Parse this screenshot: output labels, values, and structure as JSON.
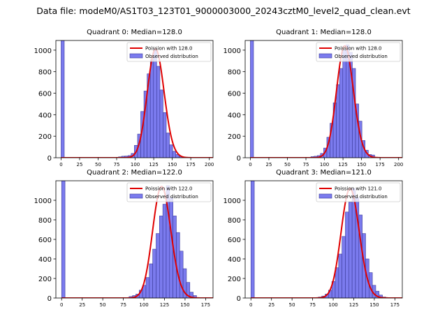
{
  "figure": {
    "suptitle": "Data file: modeM0/AS1T03_123T01_9000003000_20243cztM0_level2_quad_clean.evt"
  },
  "chart_data": [
    {
      "type": "bar",
      "title": "Quadrant 0: Median=128.0",
      "legend": {
        "line": "Poission with 128.0",
        "bars": "Observed distribution",
        "placement": "top-right"
      },
      "bin_width": 4.3,
      "xlim": [
        -7,
        205
      ],
      "ylim": [
        0,
        1090
      ],
      "xticks": [
        0,
        25,
        50,
        75,
        100,
        125,
        150,
        175,
        200
      ],
      "yticks": [
        0,
        200,
        400,
        600,
        800,
        1000
      ],
      "bins": [
        0,
        77.4,
        81.7,
        86.0,
        90.3,
        94.6,
        98.9,
        103.2,
        107.5,
        111.8,
        116.1,
        120.4,
        124.7,
        129.0,
        133.3,
        137.6,
        141.9,
        146.2,
        150.5,
        154.8,
        159.1,
        163.4
      ],
      "values": [
        1090,
        8,
        14,
        16,
        20,
        40,
        115,
        220,
        430,
        620,
        780,
        910,
        1010,
        850,
        630,
        420,
        230,
        120,
        60,
        30,
        12,
        5
      ],
      "poisson_mean": 128.0,
      "poisson_scale": 1010
    },
    {
      "type": "bar",
      "title": "Quadrant 1: Median=128.0",
      "legend": {
        "line": "Poission with 128.0",
        "bars": "Observed distribution",
        "placement": "top-right"
      },
      "bin_width": 4.3,
      "xlim": [
        -7,
        205
      ],
      "ylim": [
        0,
        1090
      ],
      "xticks": [
        0,
        25,
        50,
        75,
        100,
        125,
        150,
        175,
        200
      ],
      "yticks": [
        0,
        200,
        400,
        600,
        800,
        1000
      ],
      "bins": [
        0,
        81.7,
        86.0,
        90.3,
        94.6,
        98.9,
        103.2,
        107.5,
        111.8,
        116.1,
        120.4,
        124.7,
        129.0,
        133.3,
        137.6,
        141.9,
        146.2,
        150.5,
        154.8,
        159.1,
        163.4,
        167.7
      ],
      "values": [
        1090,
        10,
        14,
        20,
        40,
        90,
        190,
        320,
        510,
        680,
        830,
        1000,
        1050,
        980,
        830,
        500,
        340,
        160,
        70,
        30,
        25,
        5
      ],
      "poisson_mean": 128.0,
      "poisson_scale": 1040
    },
    {
      "type": "bar",
      "title": "Quadrant 2: Median=122.0",
      "legend": {
        "line": "Poission with 122.0",
        "bars": "Observed distribution",
        "placement": "top-right"
      },
      "bin_width": 4.1,
      "xlim": [
        -7,
        184
      ],
      "ylim": [
        0,
        1200
      ],
      "xticks": [
        0,
        25,
        50,
        75,
        100,
        125,
        150,
        175
      ],
      "yticks": [
        0,
        200,
        400,
        600,
        800,
        1000
      ],
      "bins": [
        0,
        82.0,
        86.1,
        90.2,
        94.3,
        98.4,
        102.5,
        106.6,
        110.7,
        114.8,
        118.9,
        123.0,
        127.1,
        131.2,
        135.3,
        139.4,
        143.5,
        147.6,
        151.7,
        155.8,
        159.9
      ],
      "values": [
        1200,
        15,
        25,
        40,
        80,
        130,
        210,
        350,
        500,
        660,
        840,
        960,
        1150,
        1030,
        840,
        670,
        480,
        300,
        160,
        60,
        25
      ],
      "poisson_mean": 122.0,
      "poisson_scale": 1140
    },
    {
      "type": "bar",
      "title": "Quadrant 3: Median=121.0",
      "legend": {
        "line": "Poission with 121.0",
        "bars": "Observed distribution",
        "placement": "top-right"
      },
      "bin_width": 4.1,
      "xlim": [
        -7,
        184
      ],
      "ylim": [
        0,
        1200
      ],
      "xticks": [
        0,
        25,
        50,
        75,
        100,
        125,
        150,
        175
      ],
      "yticks": [
        0,
        200,
        400,
        600,
        800,
        1000
      ],
      "bins": [
        0,
        82.0,
        86.1,
        90.2,
        94.3,
        98.4,
        102.5,
        106.6,
        110.7,
        114.8,
        118.9,
        123.0,
        127.1,
        131.2,
        135.3,
        139.4,
        143.5,
        147.6,
        151.7,
        155.8,
        159.9
      ],
      "values": [
        1200,
        10,
        20,
        40,
        80,
        170,
        310,
        450,
        630,
        880,
        980,
        1120,
        1030,
        850,
        660,
        400,
        260,
        130,
        70,
        30,
        10
      ],
      "poisson_mean": 121.0,
      "poisson_scale": 1120
    }
  ],
  "colors": {
    "bar_fill": "#7b7bee",
    "bar_edge": "#3a3a9a",
    "line": "#e00000",
    "axis": "#000000"
  }
}
